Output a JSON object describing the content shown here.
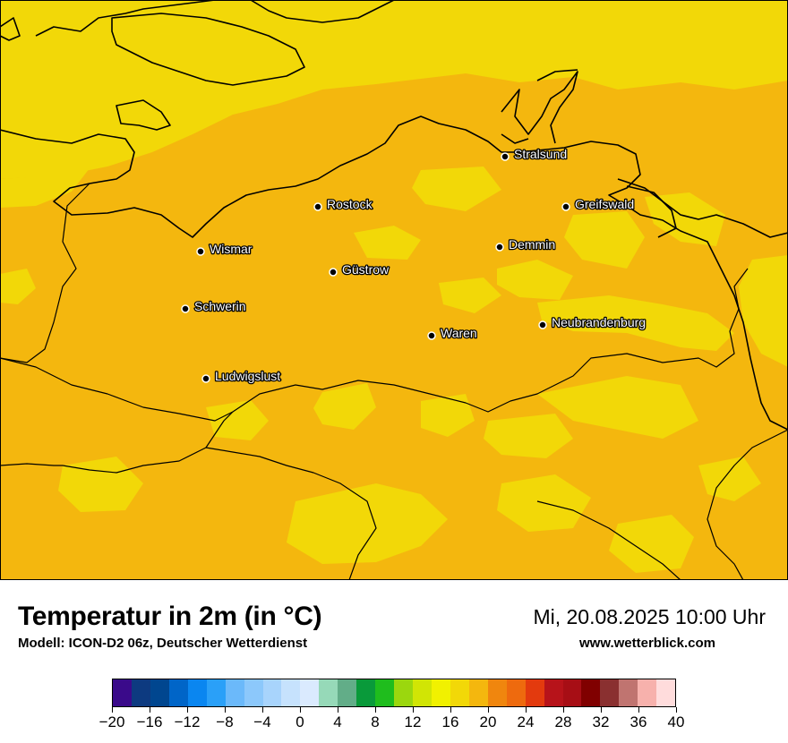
{
  "header": {
    "title": "Temperatur in 2m (in °C)",
    "model": "Modell: ICON-D2 06z, Deutscher Wetterdienst",
    "datetime": "Mi, 20.08.2025 10:00 Uhr",
    "website": "www.wetterblick.com"
  },
  "map": {
    "cities": [
      {
        "name": "Stralsund"
      },
      {
        "name": "Rostock"
      },
      {
        "name": "Greifswald"
      },
      {
        "name": "Wismar"
      },
      {
        "name": "Demmin"
      },
      {
        "name": "Güstrow"
      },
      {
        "name": "Schwerin"
      },
      {
        "name": "Neubrandenburg"
      },
      {
        "name": "Waren"
      },
      {
        "name": "Ludwigslust"
      }
    ],
    "field_colors": {
      "warm": "#F4B70E",
      "mild": "#F2D808"
    }
  },
  "colorbar": {
    "unit": "°C",
    "min": -20,
    "max": 40,
    "step": 2,
    "tick_labels": [
      "−20",
      "−16",
      "−12",
      "−8",
      "−4",
      "0",
      "4",
      "8",
      "12",
      "16",
      "20",
      "24",
      "28",
      "32",
      "36",
      "40"
    ],
    "colors": [
      "#3a0a8a",
      "#0d3a80",
      "#00468f",
      "#0065c8",
      "#0a86f0",
      "#2aa0f8",
      "#6bb9fa",
      "#8cc8fb",
      "#a8d4fc",
      "#c6e2fd",
      "#daeafe",
      "#96d9b8",
      "#62ad88",
      "#099a3a",
      "#1fbd1d",
      "#9bd70e",
      "#d1e505",
      "#f1f100",
      "#f2d808",
      "#f4b70e",
      "#f0860e",
      "#ee6a0e",
      "#e33a0e",
      "#b7131a",
      "#a70e15",
      "#800000",
      "#8a3030",
      "#c07470",
      "#f7b1ac",
      "#ffdcdc"
    ]
  }
}
